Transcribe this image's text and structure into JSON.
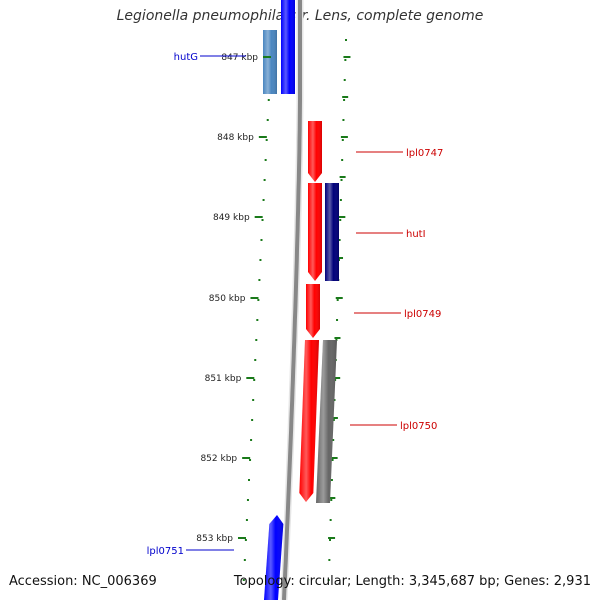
{
  "title": "Legionella pneumophila str. Lens, complete genome",
  "footer": {
    "accession": "Accession: NC_006369",
    "summary": "Topology: circular; Length: 3,345,687 bp; Genes: 2,931"
  },
  "colors": {
    "tick": "#1a7a1a",
    "backbone": "#888888",
    "label_forward": "#0000cc",
    "label_reverse": "#cc0000"
  },
  "ticks": [
    {
      "label": "847 kbp"
    },
    {
      "label": "848 kbp"
    },
    {
      "label": "849 kbp"
    },
    {
      "label": "850 kbp"
    },
    {
      "label": "851 kbp"
    },
    {
      "label": "852 kbp"
    },
    {
      "label": "853 kbp"
    }
  ],
  "genes": [
    {
      "name": "hutG",
      "color": "#4a86c0",
      "label_color": "#0000cc"
    },
    {
      "name": "",
      "color": "#0000ff"
    },
    {
      "name": "lpl0747",
      "color": "#ff0000",
      "label_color": "#cc0000"
    },
    {
      "name": "hutI",
      "color": "#ff0000",
      "label_color": "#cc0000"
    },
    {
      "name": "",
      "color": "#00007a"
    },
    {
      "name": "lpl0749",
      "color": "#ff0000",
      "label_color": "#cc0000"
    },
    {
      "name": "lpl0750",
      "color": "#ff0000",
      "label_color": "#cc0000"
    },
    {
      "name": "",
      "color": "#666666"
    },
    {
      "name": "lpl0751",
      "color": "#0000ff",
      "label_color": "#0000cc"
    }
  ]
}
